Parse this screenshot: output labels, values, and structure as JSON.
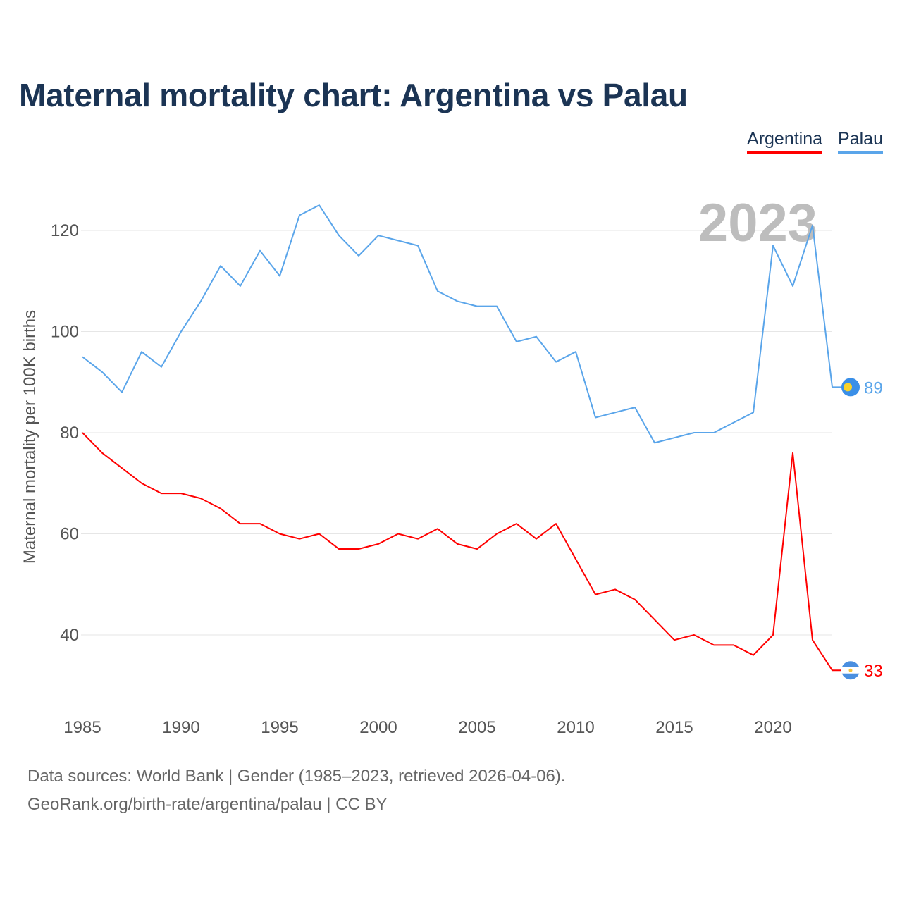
{
  "chart_data": {
    "type": "line",
    "title": "Maternal mortality chart: Argentina vs Palau",
    "xlabel": "",
    "ylabel": "Maternal mortality per 100K births",
    "x": [
      1985,
      1986,
      1987,
      1988,
      1989,
      1990,
      1991,
      1992,
      1993,
      1994,
      1995,
      1996,
      1997,
      1998,
      1999,
      2000,
      2001,
      2002,
      2003,
      2004,
      2005,
      2006,
      2007,
      2008,
      2009,
      2010,
      2011,
      2012,
      2013,
      2014,
      2015,
      2016,
      2017,
      2018,
      2019,
      2020,
      2021,
      2022,
      2023
    ],
    "xlim": [
      1985,
      2023
    ],
    "ylim": [
      28,
      130
    ],
    "xticks": [
      "1985",
      "1990",
      "1995",
      "2000",
      "2005",
      "2010",
      "2015",
      "2020"
    ],
    "yticks": [
      "40",
      "60",
      "80",
      "100",
      "120"
    ],
    "grid": true,
    "legend_position": "top-right",
    "year_label": "2023",
    "series": [
      {
        "name": "Argentina",
        "color": "#ff0000",
        "end_label": "33",
        "values": [
          80,
          76,
          73,
          70,
          68,
          68,
          67,
          65,
          62,
          62,
          60,
          59,
          60,
          57,
          57,
          58,
          60,
          59,
          61,
          58,
          57,
          60,
          62,
          59,
          62,
          55,
          48,
          49,
          47,
          43,
          39,
          40,
          38,
          38,
          36,
          40,
          76,
          39,
          33
        ]
      },
      {
        "name": "Palau",
        "color": "#5aa5ea",
        "end_label": "89",
        "values": [
          95,
          92,
          88,
          96,
          93,
          100,
          106,
          113,
          109,
          116,
          111,
          123,
          125,
          119,
          115,
          119,
          118,
          117,
          108,
          106,
          105,
          105,
          98,
          99,
          94,
          96,
          83,
          84,
          85,
          78,
          79,
          80,
          80,
          82,
          84,
          117,
          109,
          121,
          89
        ]
      }
    ]
  },
  "footer": {
    "line1": "Data sources: World Bank | Gender (1985–2023, retrieved 2026-04-06).",
    "line2": "GeoRank.org/birth-rate/argentina/palau | CC BY"
  }
}
